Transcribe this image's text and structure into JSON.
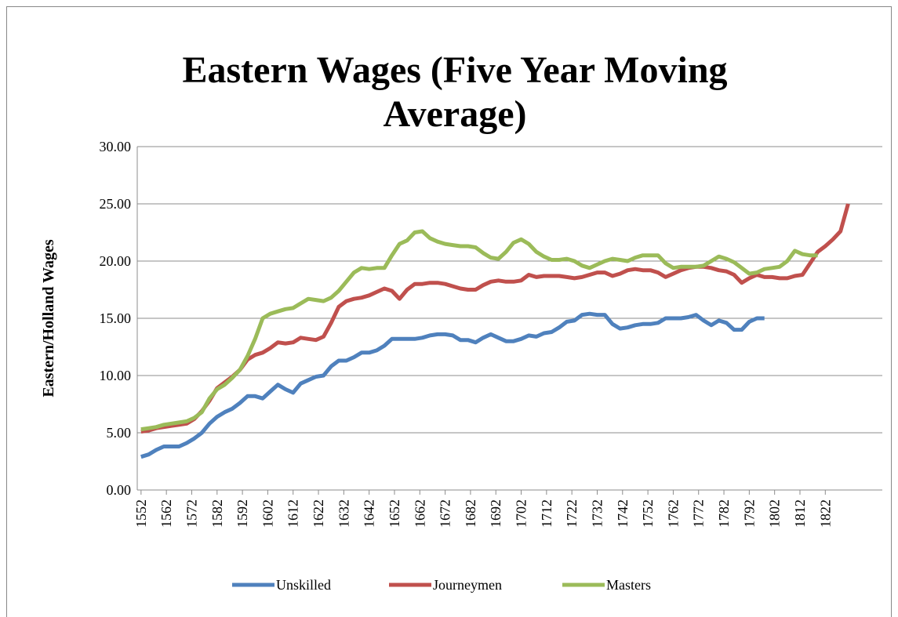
{
  "chart_data": {
    "type": "line",
    "title": "Eastern Wages (Five Year Moving Average)",
    "y_label": "Eastern/Holland Wages",
    "x": [
      1552,
      1555,
      1558,
      1561,
      1564,
      1567,
      1570,
      1573,
      1576,
      1579,
      1582,
      1585,
      1588,
      1591,
      1594,
      1597,
      1600,
      1603,
      1606,
      1609,
      1612,
      1615,
      1618,
      1621,
      1624,
      1627,
      1630,
      1633,
      1636,
      1639,
      1642,
      1645,
      1648,
      1651,
      1654,
      1657,
      1660,
      1663,
      1666,
      1669,
      1672,
      1675,
      1678,
      1681,
      1684,
      1687,
      1690,
      1693,
      1696,
      1699,
      1702,
      1705,
      1708,
      1711,
      1714,
      1717,
      1720,
      1723,
      1726,
      1729,
      1732,
      1735,
      1738,
      1741,
      1744,
      1747,
      1750,
      1753,
      1756,
      1759,
      1762,
      1765,
      1768,
      1771,
      1774,
      1777,
      1780,
      1783,
      1786,
      1789,
      1792,
      1795,
      1798,
      1801,
      1804,
      1807,
      1810,
      1813,
      1816,
      1819,
      1822,
      1825,
      1828,
      1831
    ],
    "xlim": [
      1550.5,
      1844.5
    ],
    "xticks": [
      1552,
      1562,
      1572,
      1582,
      1592,
      1602,
      1612,
      1622,
      1632,
      1642,
      1652,
      1662,
      1672,
      1682,
      1692,
      1702,
      1712,
      1722,
      1732,
      1742,
      1752,
      1762,
      1772,
      1782,
      1792,
      1802,
      1812,
      1822
    ],
    "ylim": [
      0,
      30
    ],
    "yticks": [
      {
        "value": 0,
        "label": "0.00"
      },
      {
        "value": 5,
        "label": "5.00"
      },
      {
        "value": 10,
        "label": "10.00"
      },
      {
        "value": 15,
        "label": "15.00"
      },
      {
        "value": 20,
        "label": "20.00"
      },
      {
        "value": 25,
        "label": "25.00"
      },
      {
        "value": 30,
        "label": "30.00"
      }
    ],
    "grid": true,
    "legend": "bottom",
    "series": [
      {
        "name": "Unskilled",
        "color": "#4f81bd",
        "values": [
          2.9,
          3.1,
          3.5,
          3.8,
          3.8,
          3.8,
          4.1,
          4.5,
          5.0,
          5.8,
          6.4,
          6.8,
          7.1,
          7.6,
          8.2,
          8.2,
          8.0,
          8.6,
          9.2,
          8.8,
          8.5,
          9.3,
          9.6,
          9.9,
          10.0,
          10.8,
          11.3,
          11.3,
          11.6,
          12.0,
          12.0,
          12.2,
          12.6,
          13.2,
          13.2,
          13.2,
          13.2,
          13.3,
          13.5,
          13.6,
          13.6,
          13.5,
          13.1,
          13.1,
          12.9,
          13.3,
          13.6,
          13.3,
          13.0,
          13.0,
          13.2,
          13.5,
          13.4,
          13.7,
          13.8,
          14.2,
          14.7,
          14.8,
          15.3,
          15.4,
          15.3,
          15.3,
          14.5,
          14.1,
          14.2,
          14.4,
          14.5,
          14.5,
          14.6,
          15.0,
          15.0,
          15.0,
          15.1,
          15.3,
          14.8,
          14.4,
          14.8,
          14.6,
          14.0,
          14.0,
          14.7,
          15.0,
          15.0,
          null,
          null,
          null,
          null,
          null,
          null,
          null,
          null,
          null,
          null,
          null
        ]
      },
      {
        "name": "Journeymen",
        "color": "#c0504d",
        "values": [
          5.1,
          5.2,
          5.4,
          5.5,
          5.6,
          5.7,
          5.8,
          6.2,
          6.9,
          7.8,
          8.9,
          9.4,
          9.9,
          10.5,
          11.4,
          11.8,
          12.0,
          12.4,
          12.9,
          12.8,
          12.9,
          13.3,
          13.2,
          13.1,
          13.4,
          14.6,
          16.0,
          16.5,
          16.7,
          16.8,
          17.0,
          17.3,
          17.6,
          17.4,
          16.7,
          17.5,
          18.0,
          18.0,
          18.1,
          18.1,
          18.0,
          17.8,
          17.6,
          17.5,
          17.5,
          17.9,
          18.2,
          18.3,
          18.2,
          18.2,
          18.3,
          18.8,
          18.6,
          18.7,
          18.7,
          18.7,
          18.6,
          18.5,
          18.6,
          18.8,
          19.0,
          19.0,
          18.7,
          18.9,
          19.2,
          19.3,
          19.2,
          19.2,
          19.0,
          18.6,
          18.9,
          19.2,
          19.4,
          19.5,
          19.5,
          19.4,
          19.2,
          19.1,
          18.8,
          18.1,
          18.5,
          18.8,
          18.6,
          18.6,
          18.5,
          18.5,
          18.7,
          18.8,
          19.8,
          20.8,
          21.3,
          21.9,
          22.6,
          25.0
        ]
      },
      {
        "name": "Masters",
        "color": "#9bbb59",
        "values": [
          5.3,
          5.4,
          5.5,
          5.7,
          5.8,
          5.9,
          6.0,
          6.3,
          6.8,
          8.0,
          8.8,
          9.2,
          9.8,
          10.5,
          11.7,
          13.2,
          15.0,
          15.4,
          15.6,
          15.8,
          15.9,
          16.3,
          16.7,
          16.6,
          16.5,
          16.8,
          17.4,
          18.2,
          19.0,
          19.4,
          19.3,
          19.4,
          19.4,
          20.5,
          21.5,
          21.8,
          22.5,
          22.6,
          22.0,
          21.7,
          21.5,
          21.4,
          21.3,
          21.3,
          21.2,
          20.7,
          20.3,
          20.2,
          20.8,
          21.6,
          21.9,
          21.5,
          20.8,
          20.4,
          20.1,
          20.1,
          20.2,
          20.0,
          19.6,
          19.4,
          19.7,
          20.0,
          20.2,
          20.1,
          20.0,
          20.3,
          20.5,
          20.5,
          20.5,
          19.8,
          19.4,
          19.5,
          19.5,
          19.5,
          19.6,
          20.0,
          20.4,
          20.2,
          19.9,
          19.4,
          18.9,
          19.0,
          19.3,
          19.4,
          19.5,
          20.0,
          20.9,
          20.6,
          20.5,
          20.5,
          null,
          null,
          null,
          null
        ]
      }
    ]
  }
}
